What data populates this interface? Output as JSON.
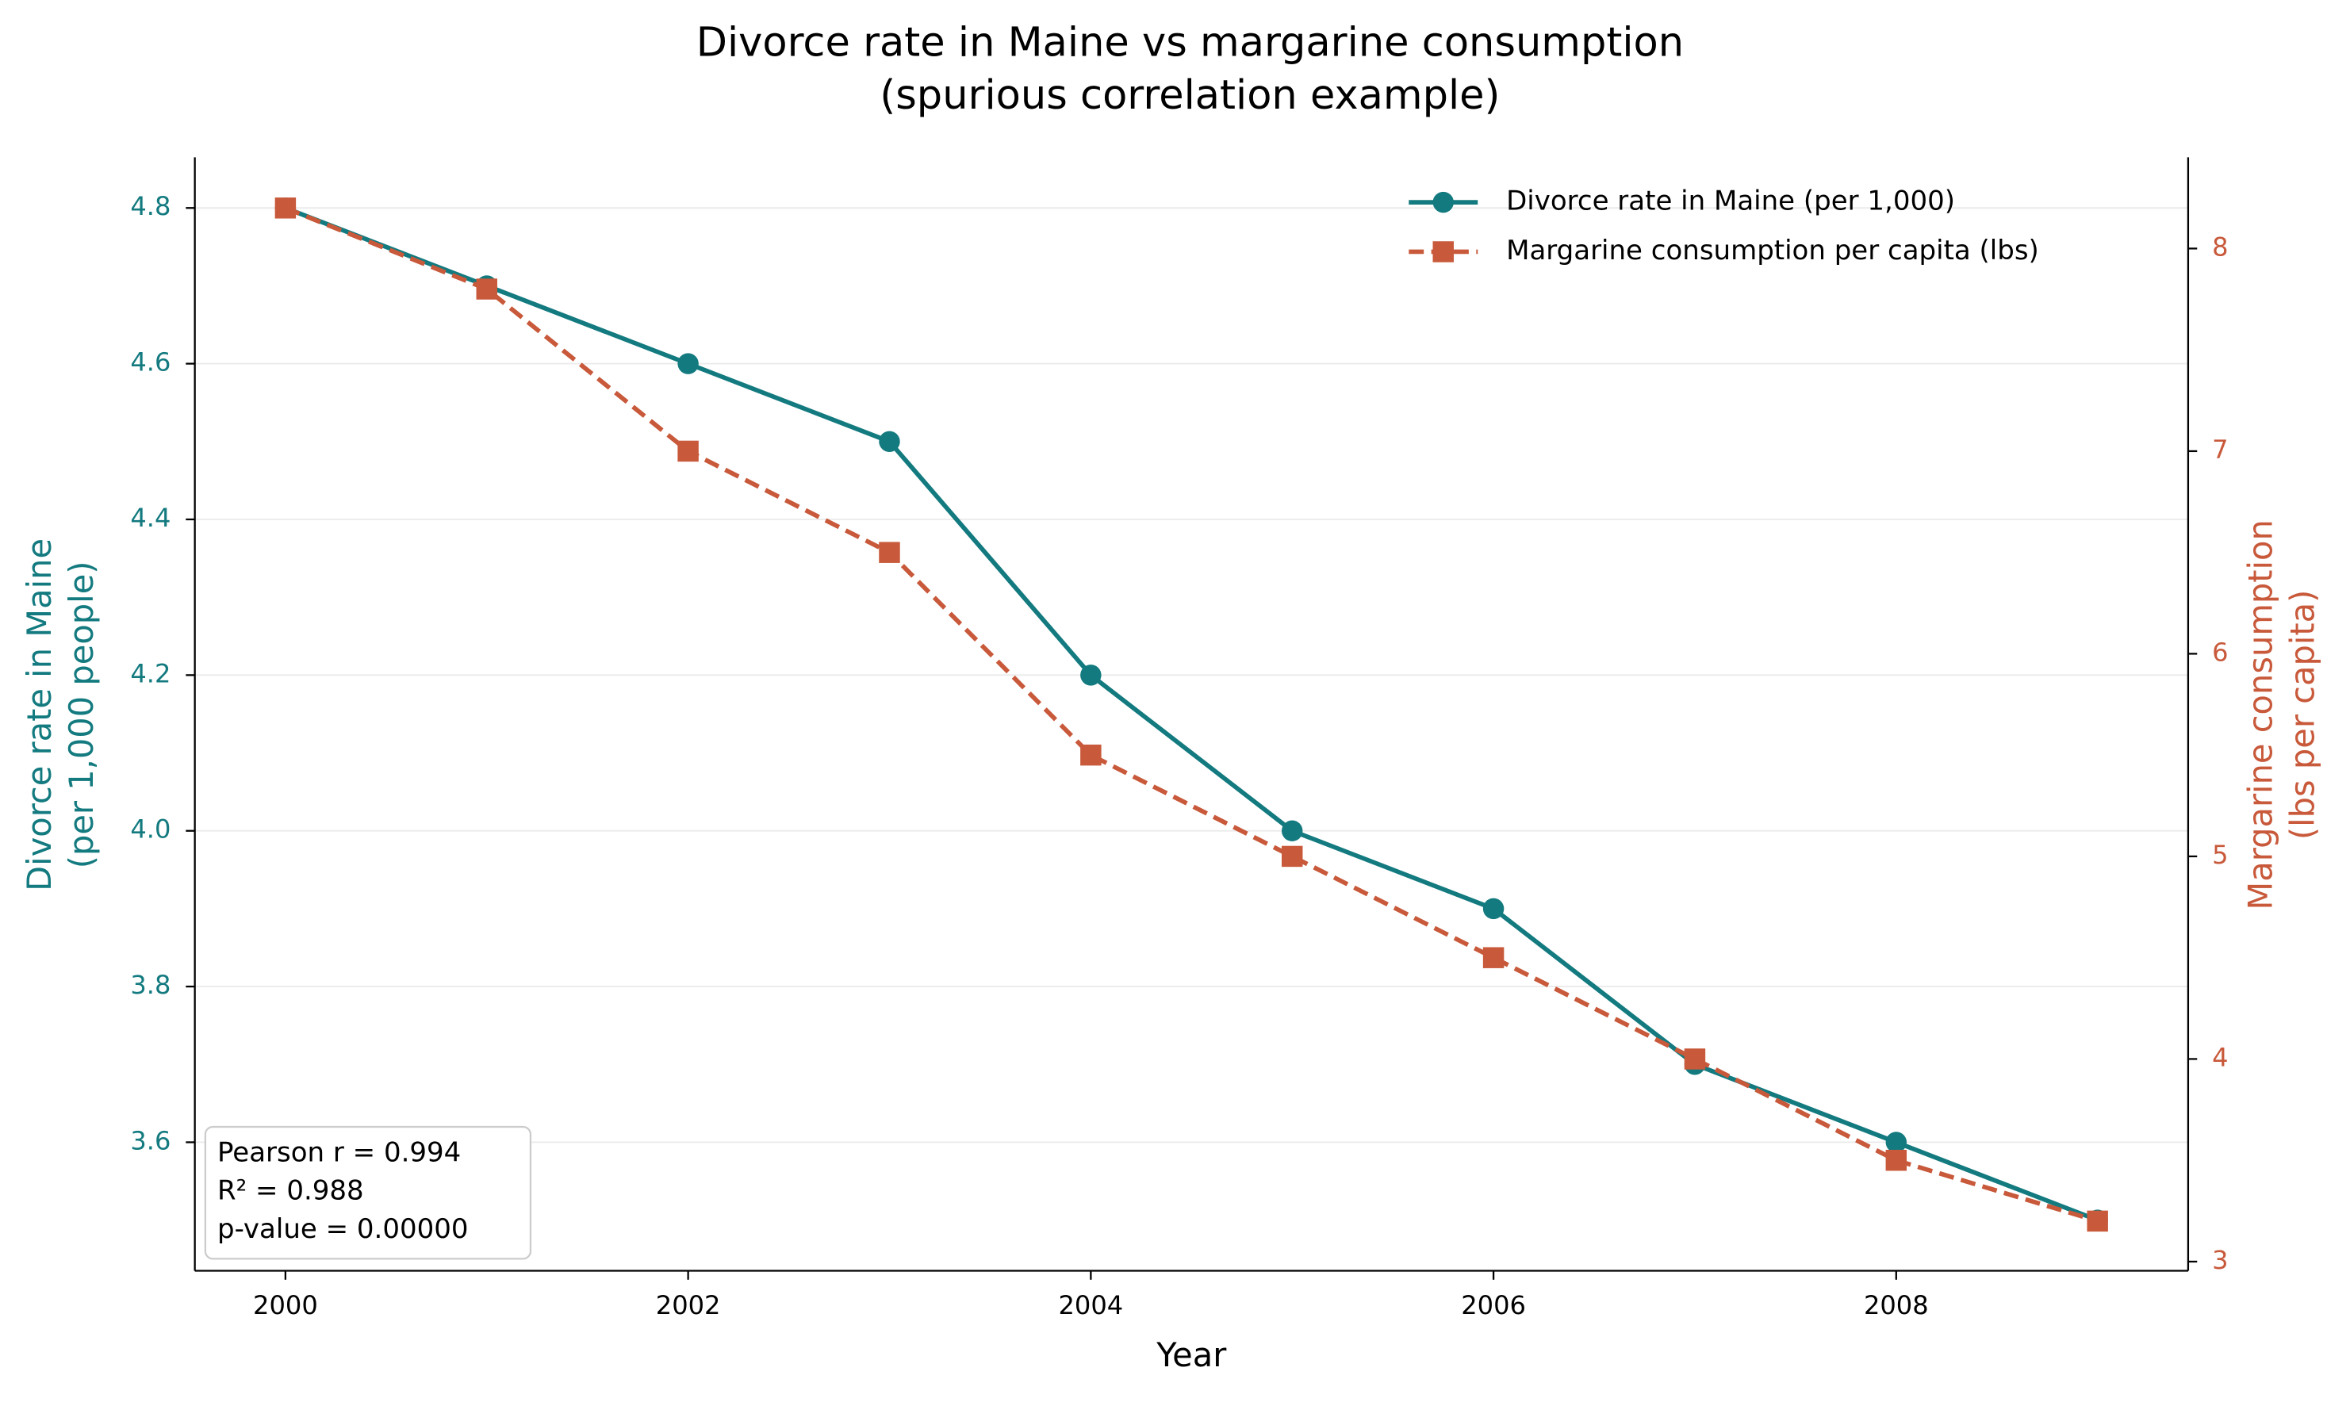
{
  "chart_data": {
    "type": "line",
    "title": [
      "Divorce rate in Maine vs margarine consumption",
      "(spurious correlation example)"
    ],
    "xlabel": "Year",
    "ylabel": [
      "Divorce rate in Maine",
      "(per 1,000 people)"
    ],
    "y2label": [
      "Margarine consumption",
      "(lbs per capita)"
    ],
    "x": [
      2000,
      2001,
      2002,
      2003,
      2004,
      2005,
      2006,
      2007,
      2008,
      2009
    ],
    "series": [
      {
        "name": "Divorce rate in Maine (per 1,000)",
        "color": "#137a7f",
        "marker": "circle",
        "dash": false,
        "values": [
          4.8,
          4.7,
          4.6,
          4.5,
          4.2,
          4.0,
          3.9,
          3.7,
          3.6,
          3.5
        ]
      },
      {
        "name": "Margarine consumption per capita (lbs)",
        "color": "#c8593a",
        "marker": "square",
        "dash": true,
        "axis": "y2",
        "values": [
          8.2,
          7.8,
          7.0,
          6.5,
          5.5,
          5.0,
          4.5,
          4.0,
          3.5,
          3.2
        ]
      }
    ],
    "xlim": [
      1999.55,
      2009.45
    ],
    "xticks": [
      2000,
      2002,
      2004,
      2006,
      2008
    ],
    "ylim": [
      3.435,
      4.865
    ],
    "yticks": [
      {
        "value": 3.6,
        "label": "3.6"
      },
      {
        "value": 3.8,
        "label": "3.8"
      },
      {
        "value": 4.0,
        "label": "4.0"
      },
      {
        "value": 4.2,
        "label": "4.2"
      },
      {
        "value": 4.4,
        "label": "4.4"
      },
      {
        "value": 4.6,
        "label": "4.6"
      },
      {
        "value": 4.8,
        "label": "4.8"
      }
    ],
    "y2lim": [
      2.955,
      8.45
    ],
    "y2ticks": [
      3,
      4,
      5,
      6,
      7,
      8
    ],
    "grid": true,
    "legend": "upper right",
    "annotation": [
      "Pearson r = 0.994",
      "R² = 0.988",
      "p-value = 0.00000"
    ]
  }
}
